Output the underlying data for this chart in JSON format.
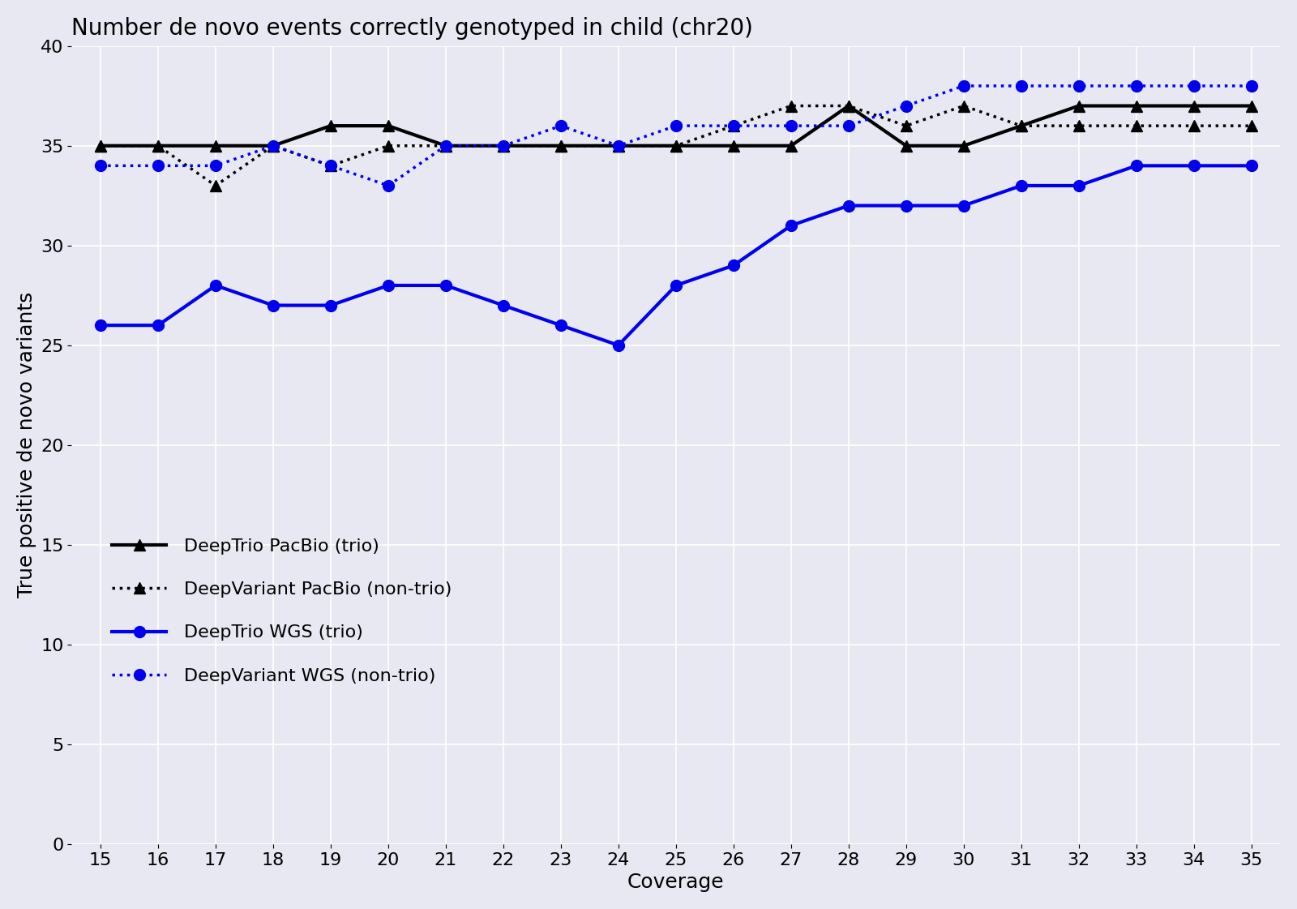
{
  "title": "Number de novo events correctly genotyped in child (chr20)",
  "xlabel": "Coverage",
  "ylabel": "True positive de novo variants",
  "x": [
    15,
    16,
    17,
    18,
    19,
    20,
    21,
    22,
    23,
    24,
    25,
    26,
    27,
    28,
    29,
    30,
    31,
    32,
    33,
    34,
    35
  ],
  "deeptrio_pacbio": [
    35,
    35,
    35,
    35,
    36,
    36,
    35,
    35,
    35,
    35,
    35,
    35,
    35,
    37,
    35,
    35,
    36,
    37,
    37,
    37,
    37
  ],
  "deepvariant_pacbio": [
    35,
    35,
    33,
    35,
    34,
    35,
    35,
    35,
    35,
    35,
    35,
    36,
    37,
    37,
    36,
    37,
    36,
    36,
    36,
    36,
    36
  ],
  "deeptrio_wgs": [
    26,
    26,
    28,
    27,
    27,
    28,
    28,
    27,
    26,
    25,
    28,
    29,
    31,
    32,
    32,
    32,
    33,
    33,
    34,
    34,
    34
  ],
  "deepvariant_wgs": [
    34,
    34,
    34,
    35,
    34,
    33,
    35,
    35,
    36,
    35,
    36,
    36,
    36,
    36,
    37,
    38,
    38,
    38,
    38,
    38,
    38
  ],
  "ylim": [
    0,
    40
  ],
  "yticks": [
    0,
    5,
    10,
    15,
    20,
    25,
    30,
    35,
    40
  ],
  "background_color": "#e8e8f2",
  "line_color_black": "#000000",
  "line_color_blue": "#0000ee",
  "legend_labels": [
    "DeepTrio PacBio (trio)",
    "DeepVariant PacBio (non-trio)",
    "DeepTrio WGS (trio)",
    "DeepVariant WGS (non-trio)"
  ],
  "title_fontsize": 20,
  "axis_label_fontsize": 18,
  "tick_fontsize": 16,
  "legend_fontsize": 16
}
